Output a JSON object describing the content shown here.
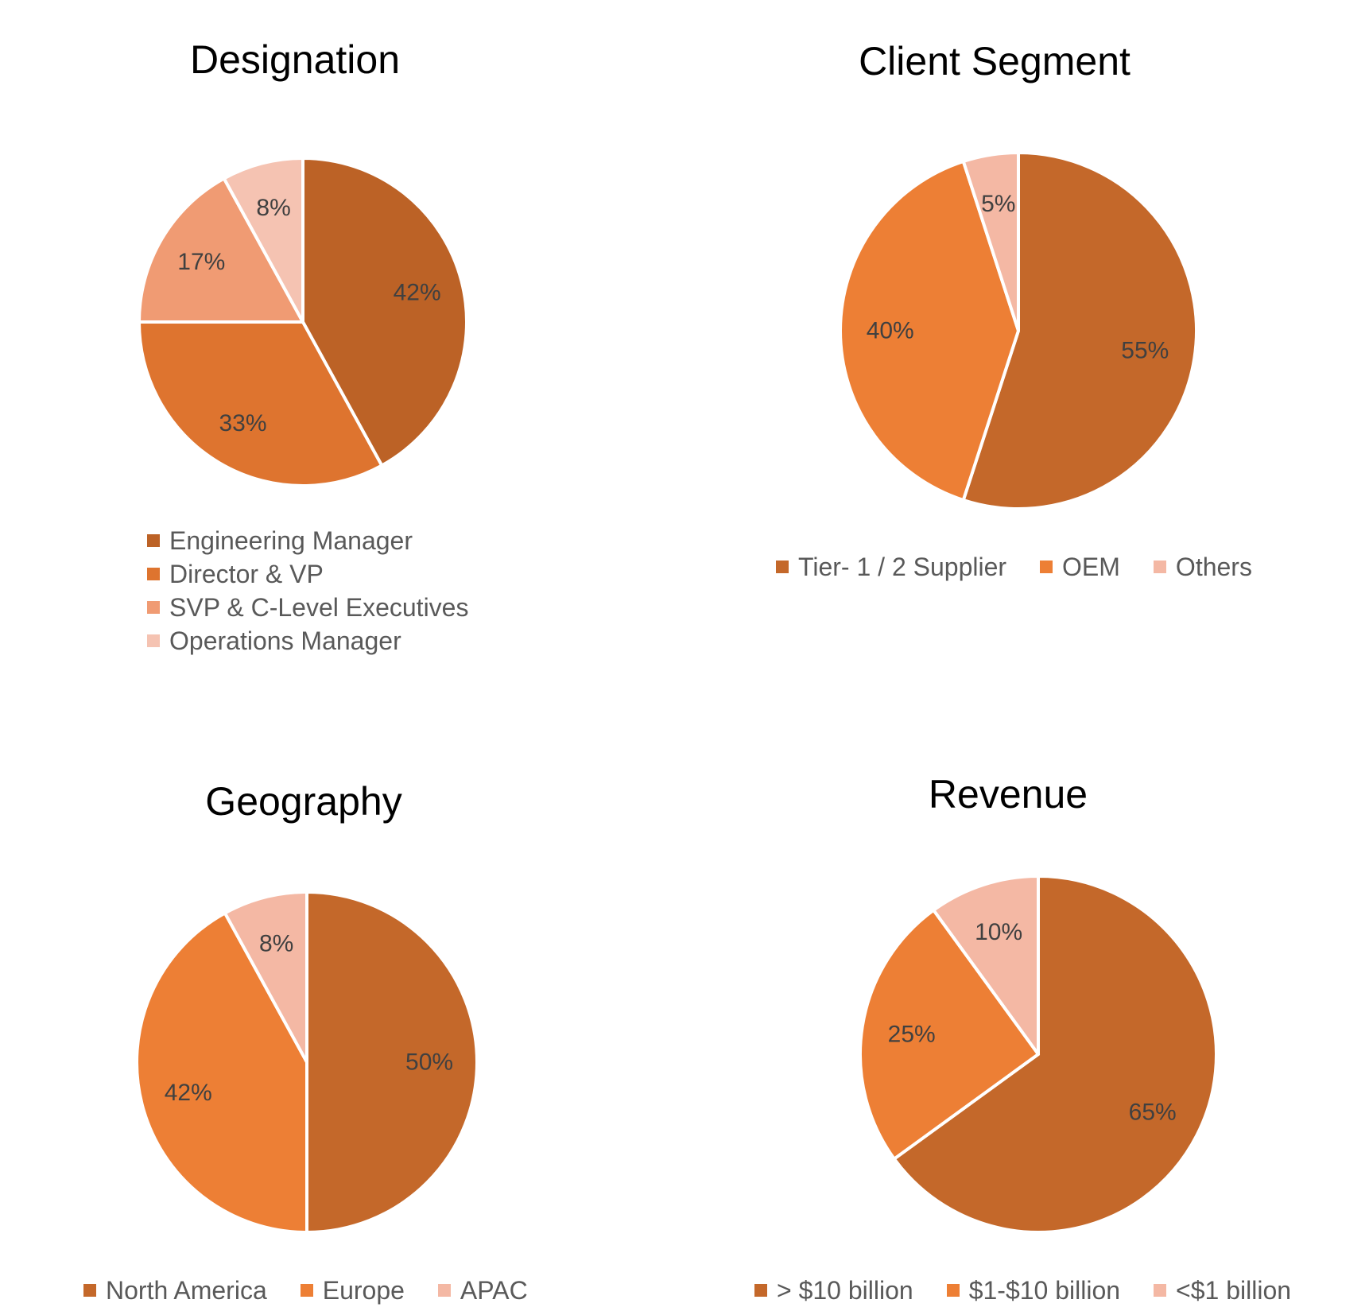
{
  "chart_data": [
    {
      "type": "pie",
      "title": "Designation",
      "categories": [
        "Engineering Manager",
        "Director & VP",
        "SVP & C-Level Executives",
        "Operations Manager"
      ],
      "values": [
        42,
        33,
        17,
        8
      ],
      "labels": [
        "42%",
        "33%",
        "17%",
        "8%"
      ],
      "colors": [
        "#BC6226",
        "#DE742F",
        "#F09B73",
        "#F5C3B2"
      ],
      "legend_position": "bottom",
      "legend_layout": "vertical"
    },
    {
      "type": "pie",
      "title": "Client Segment",
      "categories": [
        "Tier- 1 / 2 Supplier",
        "OEM",
        "Others"
      ],
      "values": [
        55,
        40,
        5
      ],
      "labels": [
        "55%",
        "40%",
        "5%"
      ],
      "colors": [
        "#C4682A",
        "#ED7F35",
        "#F4B8A4"
      ],
      "legend_position": "bottom",
      "legend_layout": "horizontal"
    },
    {
      "type": "pie",
      "title": "Geography",
      "categories": [
        "North America",
        "Europe",
        "APAC"
      ],
      "values": [
        50,
        42,
        8
      ],
      "labels": [
        "50%",
        "42%",
        "8%"
      ],
      "colors": [
        "#C4682A",
        "#ED7F35",
        "#F4B8A4"
      ],
      "legend_position": "bottom",
      "legend_layout": "horizontal"
    },
    {
      "type": "pie",
      "title": "Revenue",
      "categories": [
        "> $10 billion",
        "$1-$10 billion",
        "<$1 billion"
      ],
      "values": [
        65,
        25,
        10
      ],
      "labels": [
        "65%",
        "25%",
        "10%"
      ],
      "colors": [
        "#C4682A",
        "#ED7F35",
        "#F4B8A4"
      ],
      "legend_position": "bottom",
      "legend_layout": "horizontal"
    }
  ]
}
